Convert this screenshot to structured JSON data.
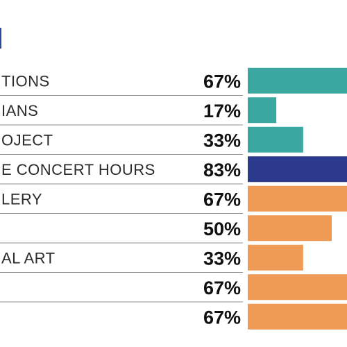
{
  "chart_data": {
    "type": "bar",
    "orientation": "horizontal",
    "categories": [
      "TIONS",
      "IANS",
      "OJECT",
      "E CONCERT HOURS",
      "LERY",
      "",
      "AL ART",
      "",
      ""
    ],
    "values": [
      67,
      17,
      33,
      83,
      67,
      50,
      33,
      67,
      67
    ],
    "value_labels": [
      "67%",
      "17%",
      "33%",
      "83%",
      "67%",
      "50%",
      "33%",
      "67%",
      "67%"
    ],
    "unit": "%",
    "xlim": [
      0,
      100
    ],
    "colors": [
      "#3aa8a1",
      "#3aa8a1",
      "#3aa8a1",
      "#2b3a8c",
      "#ef9a55",
      "#ef9a55",
      "#ef9a55",
      "#ef9a55",
      "#ef9a55"
    ],
    "grid": false,
    "legend": "none"
  }
}
